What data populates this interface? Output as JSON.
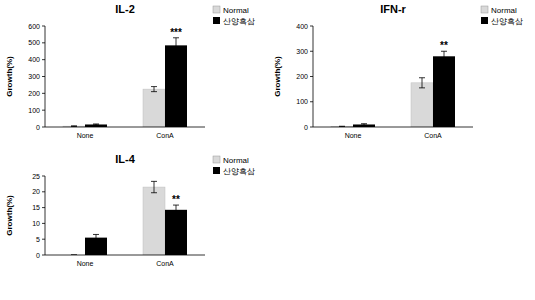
{
  "chart_data": [
    {
      "type": "bar",
      "title": "IL-2",
      "y_label": "Growth(%)",
      "categories": [
        "None",
        "ConA"
      ],
      "series": [
        {
          "name": "Normal",
          "color": "#d9d9d9",
          "values": [
            5,
            225
          ],
          "errors": [
            2,
            15
          ]
        },
        {
          "name": "산양흑삼",
          "color": "#000000",
          "values": [
            15,
            485
          ],
          "errors": [
            3,
            45
          ]
        }
      ],
      "annotations": [
        {
          "text": "***",
          "category": 1,
          "series": 1
        }
      ],
      "ylim": [
        0,
        600
      ],
      "yticks": [
        0,
        100,
        200,
        300,
        400,
        500,
        600
      ],
      "grid": false,
      "legend": "upper right"
    },
    {
      "type": "bar",
      "title": "IFN-r",
      "y_label": "Growth(%)",
      "categories": [
        "None",
        "ConA"
      ],
      "series": [
        {
          "name": "Normal",
          "color": "#d9d9d9",
          "values": [
            2,
            175
          ],
          "errors": [
            1,
            20
          ]
        },
        {
          "name": "산양흑삼",
          "color": "#000000",
          "values": [
            10,
            280
          ],
          "errors": [
            3,
            20
          ]
        }
      ],
      "annotations": [
        {
          "text": "**",
          "category": 1,
          "series": 1
        }
      ],
      "ylim": [
        0,
        400
      ],
      "yticks": [
        0,
        100,
        200,
        300,
        400
      ],
      "grid": false,
      "legend": "upper right"
    },
    {
      "type": "bar",
      "title": "IL-4",
      "y_label": "Growth(%)",
      "categories": [
        "None",
        "ConA"
      ],
      "series": [
        {
          "name": "Normal",
          "color": "#d9d9d9",
          "values": [
            0,
            21.5
          ],
          "errors": [
            0,
            1.8
          ]
        },
        {
          "name": "산양흑삼",
          "color": "#000000",
          "values": [
            5.5,
            14.3
          ],
          "errors": [
            1,
            1.5
          ]
        }
      ],
      "annotations": [
        {
          "text": "**",
          "category": 1,
          "series": 1
        }
      ],
      "ylim": [
        0,
        25
      ],
      "yticks": [
        0,
        5,
        10,
        15,
        20,
        25
      ],
      "grid": false,
      "legend": "upper right"
    }
  ]
}
